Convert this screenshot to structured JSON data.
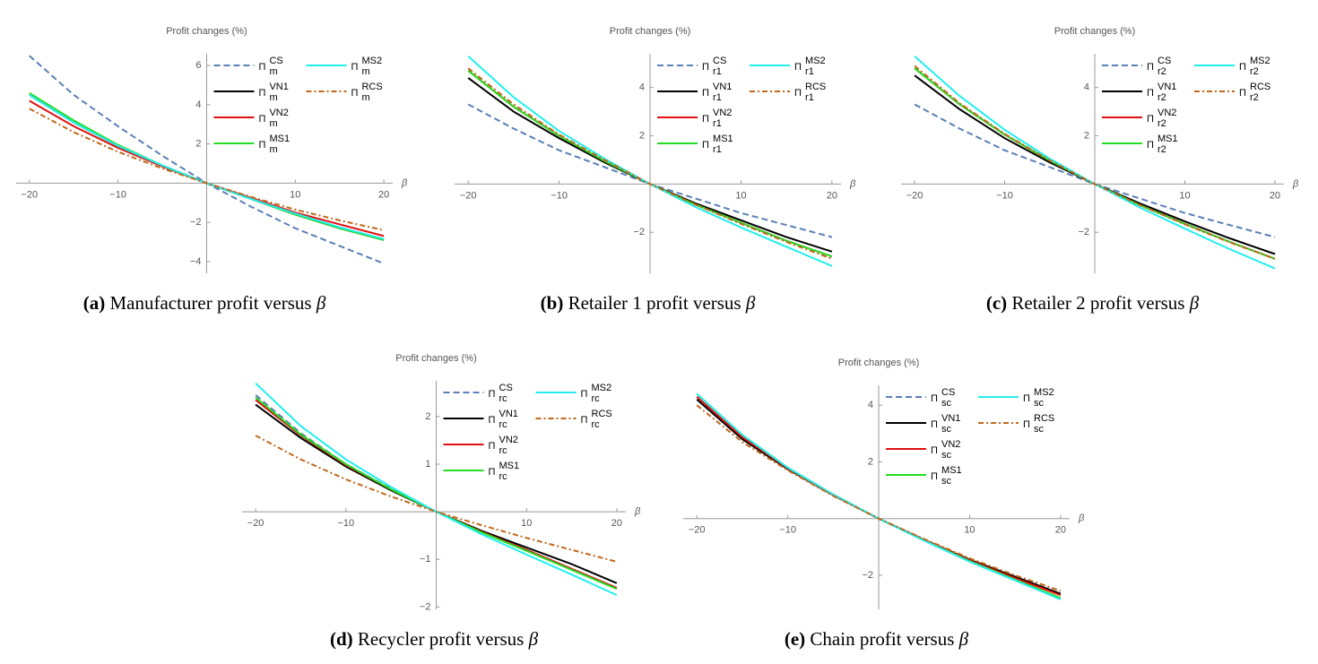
{
  "chart_data": [
    {
      "type": "line",
      "caption_label": "(a)",
      "caption": "Manufacturer profit versus",
      "caption_var": "β",
      "ylabel": "Profit changes (%)",
      "xlabel": "β",
      "x": [
        -20,
        -15,
        -10,
        -5,
        0,
        5,
        10,
        15,
        20
      ],
      "xlim": [
        -21.5,
        21
      ],
      "ylim": [
        -4.6,
        6.6
      ],
      "xticks": [
        {
          "value": -20,
          "label": "−20"
        },
        {
          "value": -10,
          "label": "−10"
        },
        10,
        20
      ],
      "yticks": [
        {
          "value": -4,
          "label": "−4"
        },
        {
          "value": -2,
          "label": "−2"
        },
        2,
        4,
        6
      ],
      "series": [
        {
          "name": "Π",
          "subscript": "m",
          "superscript": "CS",
          "color": "#5b7fb6",
          "dash": "dashed",
          "values": [
            6.5,
            4.5,
            2.9,
            1.4,
            0,
            -1.2,
            -2.3,
            -3.2,
            -4.1
          ]
        },
        {
          "name": "Π",
          "subscript": "m",
          "superscript": "VN1",
          "color": "#000000",
          "dash": "solid",
          "values": [
            4.5,
            3.1,
            1.9,
            0.9,
            0,
            -0.8,
            -1.6,
            -2.3,
            -2.9
          ]
        },
        {
          "name": "Π",
          "subscript": "m",
          "superscript": "VN2",
          "color": "#e01010",
          "dash": "solid",
          "values": [
            4.2,
            2.9,
            1.8,
            0.85,
            0,
            -0.75,
            -1.5,
            -2.1,
            -2.7
          ]
        },
        {
          "name": "Π",
          "subscript": "m",
          "superscript": "MS1",
          "color": "#22dd22",
          "dash": "solid",
          "values": [
            4.6,
            3.2,
            1.95,
            0.9,
            0,
            -0.8,
            -1.6,
            -2.3,
            -2.9
          ]
        },
        {
          "name": "Π",
          "subscript": "m",
          "superscript": "MS2",
          "color": "#22eeee",
          "dash": "solid",
          "values": [
            4.5,
            3.1,
            1.9,
            0.9,
            0,
            -0.8,
            -1.55,
            -2.25,
            -2.85
          ]
        },
        {
          "name": "Π",
          "subscript": "m",
          "superscript": "RCS",
          "color": "#c0681c",
          "dash": "dashdot",
          "values": [
            3.8,
            2.6,
            1.6,
            0.75,
            0,
            -0.7,
            -1.35,
            -1.9,
            -2.4
          ]
        }
      ]
    },
    {
      "type": "line",
      "caption_label": "(b)",
      "caption": "Retailer 1 profit versus",
      "caption_var": "β",
      "ylabel": "Profit changes (%)",
      "xlabel": "β",
      "x": [
        -20,
        -15,
        -10,
        -5,
        0,
        5,
        10,
        15,
        20
      ],
      "xlim": [
        -21.5,
        21
      ],
      "ylim": [
        -3.7,
        5.4
      ],
      "xticks": [
        {
          "value": -20,
          "label": "−20"
        },
        {
          "value": -10,
          "label": "−10"
        },
        10,
        20
      ],
      "yticks": [
        {
          "value": -2,
          "label": "−2"
        },
        2,
        4
      ],
      "series": [
        {
          "name": "Π",
          "subscript": "r1",
          "superscript": "CS",
          "color": "#5b7fb6",
          "dash": "dashed",
          "values": [
            3.3,
            2.3,
            1.4,
            0.7,
            0,
            -0.6,
            -1.2,
            -1.7,
            -2.2
          ]
        },
        {
          "name": "Π",
          "subscript": "r1",
          "superscript": "VN1",
          "color": "#000000",
          "dash": "solid",
          "values": [
            4.4,
            3.0,
            1.9,
            0.9,
            0,
            -0.8,
            -1.5,
            -2.2,
            -2.8
          ]
        },
        {
          "name": "Π",
          "subscript": "r1",
          "superscript": "VN2",
          "color": "#e01010",
          "dash": "solid",
          "values": [
            4.7,
            3.2,
            2.0,
            0.95,
            0,
            -0.85,
            -1.6,
            -2.35,
            -3.0
          ]
        },
        {
          "name": "Π",
          "subscript": "r1",
          "superscript": "MS1",
          "color": "#22dd22",
          "dash": "solid",
          "values": [
            4.7,
            3.2,
            2.0,
            0.95,
            0,
            -0.85,
            -1.6,
            -2.35,
            -3.0
          ]
        },
        {
          "name": "Π",
          "subscript": "r1",
          "superscript": "MS2",
          "color": "#22eeee",
          "dash": "solid",
          "values": [
            5.3,
            3.6,
            2.2,
            1.05,
            0,
            -0.95,
            -1.8,
            -2.6,
            -3.4
          ]
        },
        {
          "name": "Π",
          "subscript": "r1",
          "superscript": "RCS",
          "color": "#c0681c",
          "dash": "dashdot",
          "values": [
            4.8,
            3.3,
            2.05,
            1.0,
            0,
            -0.85,
            -1.65,
            -2.4,
            -3.1
          ]
        }
      ]
    },
    {
      "type": "line",
      "caption_label": "(c)",
      "caption": "Retailer 2 profit versus",
      "caption_var": "β",
      "ylabel": "Profit changes (%)",
      "xlabel": "β",
      "x": [
        -20,
        -15,
        -10,
        -5,
        0,
        5,
        10,
        15,
        20
      ],
      "xlim": [
        -21.5,
        21
      ],
      "ylim": [
        -3.7,
        5.4
      ],
      "xticks": [
        {
          "value": -20,
          "label": "−20"
        },
        {
          "value": -10,
          "label": "−10"
        },
        10,
        20
      ],
      "yticks": [
        {
          "value": -2,
          "label": "−2"
        },
        2,
        4
      ],
      "series": [
        {
          "name": "Π",
          "subscript": "r2",
          "superscript": "CS",
          "color": "#5b7fb6",
          "dash": "dashed",
          "values": [
            3.3,
            2.3,
            1.4,
            0.7,
            0,
            -0.6,
            -1.2,
            -1.7,
            -2.2
          ]
        },
        {
          "name": "Π",
          "subscript": "r2",
          "superscript": "VN1",
          "color": "#000000",
          "dash": "solid",
          "values": [
            4.5,
            3.1,
            1.9,
            0.9,
            0,
            -0.8,
            -1.55,
            -2.25,
            -2.9
          ]
        },
        {
          "name": "Π",
          "subscript": "r2",
          "superscript": "VN2",
          "color": "#e01010",
          "dash": "solid",
          "values": [
            4.8,
            3.3,
            2.05,
            0.97,
            0,
            -0.87,
            -1.65,
            -2.4,
            -3.1
          ]
        },
        {
          "name": "Π",
          "subscript": "r2",
          "superscript": "MS1",
          "color": "#22dd22",
          "dash": "solid",
          "values": [
            4.8,
            3.3,
            2.05,
            0.97,
            0,
            -0.87,
            -1.65,
            -2.4,
            -3.1
          ]
        },
        {
          "name": "Π",
          "subscript": "r2",
          "superscript": "MS2",
          "color": "#22eeee",
          "dash": "solid",
          "values": [
            5.3,
            3.65,
            2.25,
            1.05,
            0,
            -0.97,
            -1.85,
            -2.7,
            -3.5
          ]
        },
        {
          "name": "Π",
          "subscript": "r2",
          "superscript": "RCS",
          "color": "#c0681c",
          "dash": "dashdot",
          "values": [
            4.9,
            3.35,
            2.08,
            0.98,
            0,
            -0.87,
            -1.67,
            -2.42,
            -3.1
          ]
        }
      ]
    },
    {
      "type": "line",
      "caption_label": "(d)",
      "caption": "Recycler profit versus",
      "caption_var": "β",
      "ylabel": "Profit changes (%)",
      "xlabel": "β",
      "x": [
        -20,
        -15,
        -10,
        -5,
        0,
        5,
        10,
        15,
        20
      ],
      "xlim": [
        -21.5,
        21
      ],
      "ylim": [
        -2.05,
        2.75
      ],
      "xticks": [
        {
          "value": -20,
          "label": "−20"
        },
        {
          "value": -10,
          "label": "−10"
        },
        10,
        20
      ],
      "yticks": [
        {
          "value": -2,
          "label": "−2"
        },
        {
          "value": -1,
          "label": "−1"
        },
        1,
        2
      ],
      "series": [
        {
          "name": "Π",
          "subscript": "rc",
          "superscript": "CS",
          "color": "#5b7fb6",
          "dash": "dashed",
          "values": [
            2.45,
            1.65,
            1.0,
            0.48,
            0,
            -0.42,
            -0.8,
            -1.2,
            -1.6
          ]
        },
        {
          "name": "Π",
          "subscript": "rc",
          "superscript": "VN1",
          "color": "#000000",
          "dash": "solid",
          "values": [
            2.25,
            1.55,
            0.95,
            0.45,
            0,
            -0.4,
            -0.75,
            -1.1,
            -1.5
          ]
        },
        {
          "name": "Π",
          "subscript": "rc",
          "superscript": "VN2",
          "color": "#e01010",
          "dash": "solid",
          "values": [
            2.35,
            1.6,
            0.98,
            0.47,
            0,
            -0.42,
            -0.8,
            -1.2,
            -1.6
          ]
        },
        {
          "name": "Π",
          "subscript": "rc",
          "superscript": "MS1",
          "color": "#22dd22",
          "dash": "solid",
          "values": [
            2.4,
            1.62,
            1.0,
            0.47,
            0,
            -0.43,
            -0.82,
            -1.22,
            -1.62
          ]
        },
        {
          "name": "Π",
          "subscript": "rc",
          "superscript": "MS2",
          "color": "#22eeee",
          "dash": "solid",
          "values": [
            2.7,
            1.8,
            1.1,
            0.52,
            0,
            -0.47,
            -0.9,
            -1.32,
            -1.75
          ]
        },
        {
          "name": "Π",
          "subscript": "rc",
          "superscript": "RCS",
          "color": "#c0681c",
          "dash": "dashdot",
          "values": [
            1.6,
            1.1,
            0.68,
            0.32,
            0,
            -0.28,
            -0.55,
            -0.8,
            -1.05
          ]
        }
      ]
    },
    {
      "type": "line",
      "caption_label": "(e)",
      "caption": "Chain profit versus",
      "caption_var": "β",
      "ylabel": "Profit changes (%)",
      "xlabel": "β",
      "x": [
        -20,
        -15,
        -10,
        -5,
        0,
        5,
        10,
        15,
        20
      ],
      "xlim": [
        -21.5,
        21
      ],
      "ylim": [
        -3.2,
        4.7
      ],
      "xticks": [
        {
          "value": -20,
          "label": "−20"
        },
        {
          "value": -10,
          "label": "−10"
        },
        10,
        20
      ],
      "yticks": [
        {
          "value": -2,
          "label": "−2"
        },
        2,
        4
      ],
      "series": [
        {
          "name": "Π",
          "subscript": "sc",
          "superscript": "CS",
          "color": "#5b7fb6",
          "dash": "dashed",
          "values": [
            4.2,
            2.8,
            1.75,
            0.83,
            0,
            -0.75,
            -1.45,
            -2.05,
            -2.65
          ]
        },
        {
          "name": "Π",
          "subscript": "sc",
          "superscript": "VN1",
          "color": "#000000",
          "dash": "solid",
          "values": [
            4.2,
            2.8,
            1.75,
            0.83,
            0,
            -0.75,
            -1.45,
            -2.05,
            -2.65
          ]
        },
        {
          "name": "Π",
          "subscript": "sc",
          "superscript": "VN2",
          "color": "#e01010",
          "dash": "solid",
          "values": [
            4.3,
            2.87,
            1.78,
            0.84,
            0,
            -0.76,
            -1.47,
            -2.1,
            -2.7
          ]
        },
        {
          "name": "Π",
          "subscript": "sc",
          "superscript": "MS1",
          "color": "#22dd22",
          "dash": "solid",
          "values": [
            4.4,
            2.95,
            1.8,
            0.85,
            0,
            -0.77,
            -1.5,
            -2.15,
            -2.8
          ]
        },
        {
          "name": "Π",
          "subscript": "sc",
          "superscript": "MS2",
          "color": "#22eeee",
          "dash": "solid",
          "values": [
            4.4,
            2.95,
            1.8,
            0.85,
            0,
            -0.78,
            -1.52,
            -2.18,
            -2.85
          ]
        },
        {
          "name": "Π",
          "subscript": "sc",
          "superscript": "RCS",
          "color": "#c0681c",
          "dash": "dashdot",
          "values": [
            4.0,
            2.7,
            1.7,
            0.8,
            0,
            -0.72,
            -1.4,
            -2.0,
            -2.55
          ]
        }
      ]
    }
  ]
}
